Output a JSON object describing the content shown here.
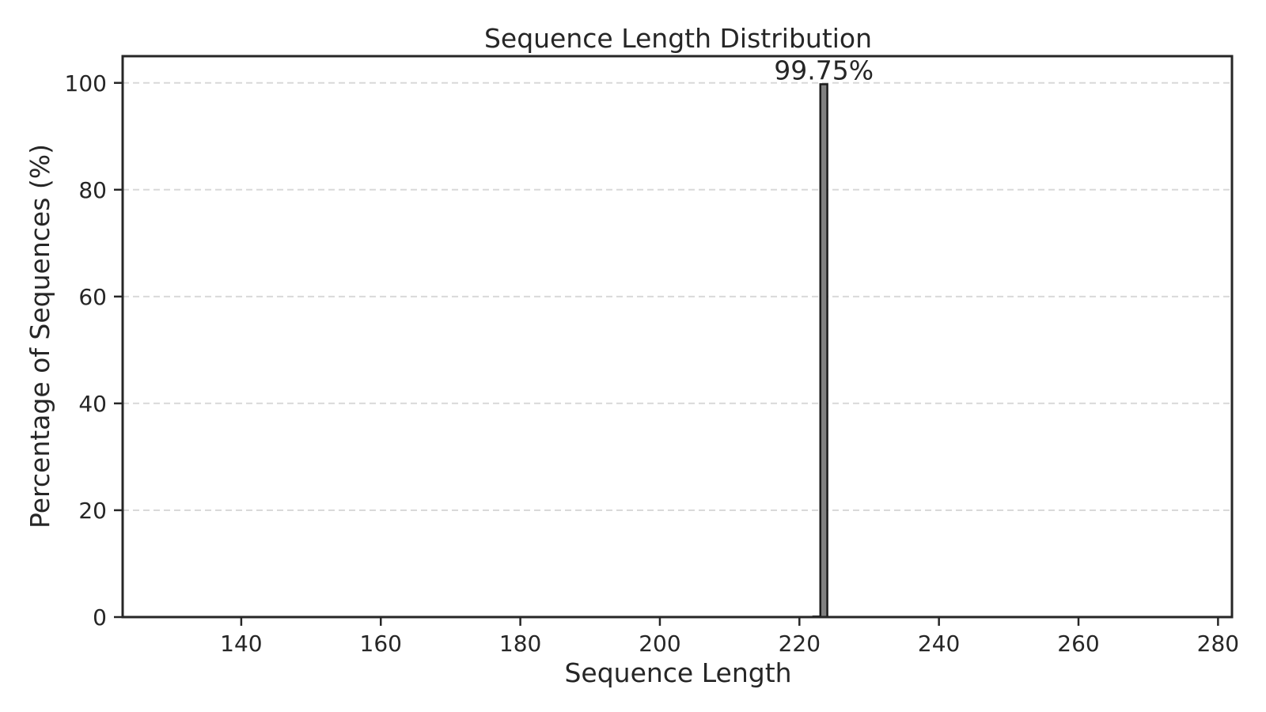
{
  "chart_data": {
    "type": "bar",
    "title": "Sequence Length Distribution",
    "xlabel": "Sequence Length",
    "ylabel": "Percentage of Sequences (%)",
    "xlim": [
      123,
      282
    ],
    "ylim": [
      0,
      105
    ],
    "xticks": [
      140,
      160,
      180,
      200,
      220,
      240,
      260,
      280
    ],
    "yticks": [
      0,
      20,
      40,
      60,
      80,
      100
    ],
    "grid": "y-dashed",
    "bars": [
      {
        "x": 222,
        "width": 1,
        "value": 0.1
      },
      {
        "x": 223,
        "width": 1,
        "value": 99.75,
        "label": "99.75%"
      }
    ],
    "colors": {
      "bar_fill": "#808080",
      "bar_edge": "#1a1a1a",
      "grid": "#d9d9d9",
      "axis": "#262626",
      "text": "#262626"
    }
  }
}
